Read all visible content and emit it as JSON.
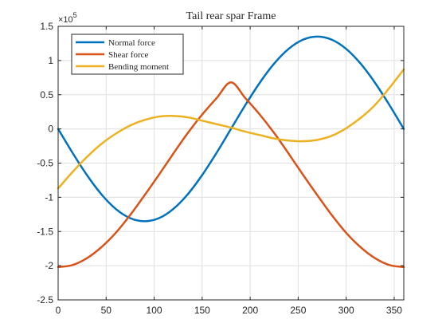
{
  "chart_data": {
    "type": "line",
    "title": "Tail rear spar Frame",
    "xlabel": "",
    "ylabel": "",
    "y_exponent_label": "×10",
    "y_exponent_power": "5",
    "xlim": [
      0,
      360
    ],
    "ylim": [
      -2.5,
      1.5
    ],
    "x_ticks": [
      "0",
      "50",
      "100",
      "150",
      "200",
      "250",
      "300",
      "350"
    ],
    "x_tick_values": [
      0,
      50,
      100,
      150,
      200,
      250,
      300,
      350
    ],
    "y_ticks": [
      "-2.5",
      "-2",
      "-1.5",
      "-1",
      "-0.5",
      "0",
      "0.5",
      "1",
      "1.5"
    ],
    "y_tick_values": [
      -2.5,
      -2,
      -1.5,
      -1,
      -0.5,
      0,
      0.5,
      1,
      1.5
    ],
    "grid": true,
    "legend_position": "top-left",
    "x": [
      0,
      15,
      30,
      45,
      60,
      75,
      90,
      105,
      120,
      135,
      150,
      165,
      180,
      195,
      210,
      225,
      240,
      255,
      270,
      285,
      300,
      315,
      330,
      345,
      360
    ],
    "series": [
      {
        "name": "Normal force",
        "color": "#0072BD",
        "values": [
          0,
          -0.35,
          -0.675,
          -0.955,
          -1.17,
          -1.305,
          -1.35,
          -1.305,
          -1.17,
          -0.955,
          -0.675,
          -0.35,
          0,
          0.35,
          0.675,
          0.955,
          1.17,
          1.305,
          1.35,
          1.305,
          1.17,
          0.955,
          0.675,
          0.35,
          0
        ]
      },
      {
        "name": "Shear force",
        "color": "#D95319",
        "values": [
          -2.02,
          -1.99,
          -1.89,
          -1.73,
          -1.52,
          -1.26,
          -0.97,
          -0.67,
          -0.36,
          -0.06,
          0.21,
          0.45,
          0.68,
          0.45,
          0.21,
          -0.06,
          -0.36,
          -0.67,
          -0.97,
          -1.26,
          -1.52,
          -1.73,
          -1.89,
          -1.99,
          -2.02
        ]
      },
      {
        "name": "Bending moment",
        "color": "#EDB120",
        "values": [
          -0.87,
          -0.63,
          -0.41,
          -0.22,
          -0.07,
          0.05,
          0.13,
          0.18,
          0.19,
          0.17,
          0.12,
          0.07,
          0.02,
          -0.04,
          -0.09,
          -0.14,
          -0.17,
          -0.18,
          -0.16,
          -0.1,
          0.01,
          0.16,
          0.35,
          0.6,
          0.87
        ]
      }
    ]
  }
}
